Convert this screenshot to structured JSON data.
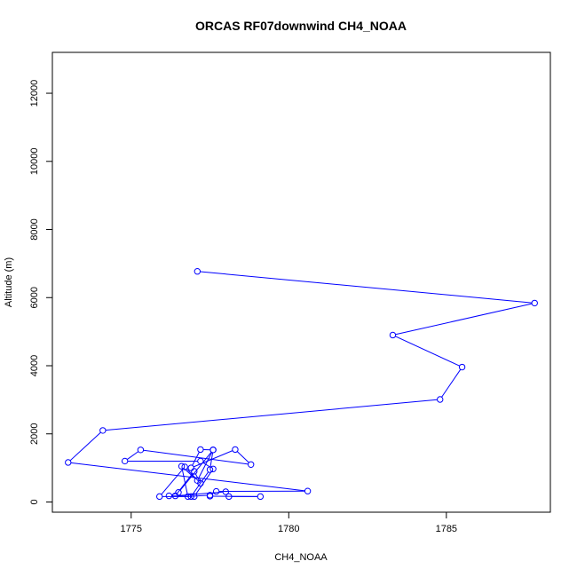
{
  "chart_data": {
    "type": "line",
    "title": "ORCAS RF07downwind CH4_NOAA",
    "xlabel": "CH4_NOAA",
    "ylabel": "Altitude (m)",
    "xlim": [
      1772.5,
      1788.3
    ],
    "ylim": [
      -300,
      13200
    ],
    "xticks": [
      1775,
      1780,
      1785
    ],
    "yticks": [
      0,
      2000,
      4000,
      6000,
      8000,
      10000,
      12000
    ],
    "grid": false,
    "legend": "none",
    "series": [
      {
        "color": "#0000ff",
        "marker": "open-circle",
        "points": [
          [
            1777.1,
            6770
          ],
          [
            1787.8,
            5840
          ],
          [
            1783.3,
            4900
          ],
          [
            1785.5,
            3960
          ],
          [
            1784.8,
            3010
          ],
          [
            1774.1,
            2100
          ],
          [
            1773.0,
            1160
          ],
          [
            1780.6,
            320
          ],
          [
            1777.7,
            310
          ],
          [
            1777.5,
            200
          ],
          [
            1776.8,
            160
          ],
          [
            1776.6,
            1050
          ],
          [
            1777.1,
            630
          ],
          [
            1777.6,
            1530
          ],
          [
            1776.5,
            280
          ],
          [
            1776.2,
            180
          ],
          [
            1777.0,
            160
          ],
          [
            1777.6,
            970
          ],
          [
            1777.2,
            1200
          ],
          [
            1774.8,
            1200
          ],
          [
            1775.3,
            1530
          ],
          [
            1778.8,
            1100
          ],
          [
            1778.3,
            1540
          ],
          [
            1776.9,
            1000
          ],
          [
            1777.2,
            1540
          ],
          [
            1777.6,
            1530
          ],
          [
            1777.5,
            950
          ],
          [
            1776.9,
            160
          ],
          [
            1775.9,
            160
          ],
          [
            1776.7,
            1030
          ],
          [
            1777.2,
            550
          ],
          [
            1777.0,
            900
          ],
          [
            1776.4,
            180
          ],
          [
            1778.0,
            300
          ],
          [
            1778.1,
            160
          ],
          [
            1779.1,
            160
          ],
          [
            1777.5,
            170
          ]
        ]
      }
    ]
  }
}
